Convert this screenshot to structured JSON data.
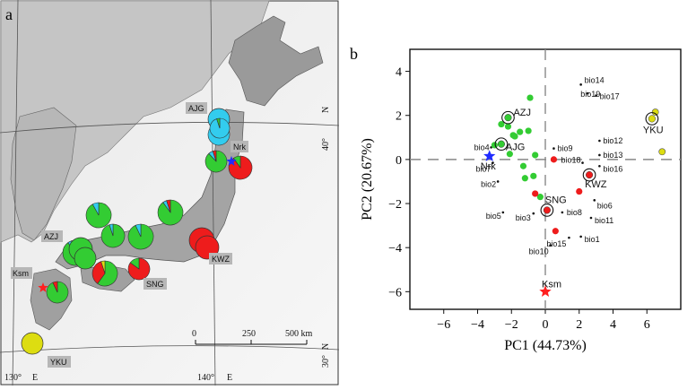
{
  "panels": {
    "map_letter": "a",
    "pca_letter": "b"
  },
  "colors": {
    "green": "#33cc33",
    "red": "#ee1c1c",
    "cyan": "#33ccee",
    "yellow": "#dddd11",
    "blue_star": "#1f2bff",
    "red_star": "#ff2020"
  },
  "map": {
    "grid_labels": {
      "lat40": "40°",
      "lat30": "30°",
      "lon130": "130°",
      "lon140": "140°",
      "north": "N",
      "east": "E"
    },
    "scale": {
      "zero": "0",
      "mid": "250",
      "end": "500 km"
    },
    "site_labels": {
      "AJG": "AJG",
      "Nrk": "Nrk",
      "AZJ": "AZJ",
      "KWZ": "KWZ",
      "Ksm": "Ksm",
      "SNG": "SNG",
      "YKU": "YKU"
    },
    "pies": [
      {
        "site": "AJG-1",
        "slices": [
          {
            "color": "cyan",
            "fraction": 1.0
          }
        ]
      },
      {
        "site": "AJG-2",
        "slices": [
          {
            "color": "cyan",
            "fraction": 0.92
          },
          {
            "color": "green",
            "fraction": 0.08
          }
        ]
      },
      {
        "site": "AJG-3",
        "slices": [
          {
            "color": "cyan",
            "fraction": 0.95
          },
          {
            "color": "green",
            "fraction": 0.05
          }
        ]
      },
      {
        "site": "Nrk-north",
        "slices": [
          {
            "color": "green",
            "fraction": 0.88
          },
          {
            "color": "cyan",
            "fraction": 0.07
          },
          {
            "color": "red",
            "fraction": 0.05
          }
        ]
      },
      {
        "site": "Nrk",
        "slices": [
          {
            "color": "red",
            "fraction": 0.9
          },
          {
            "color": "green",
            "fraction": 0.1
          }
        ]
      },
      {
        "site": "KWZ-1",
        "slices": [
          {
            "color": "red",
            "fraction": 1.0
          }
        ]
      },
      {
        "site": "KWZ-2",
        "slices": [
          {
            "color": "red",
            "fraction": 1.0
          }
        ]
      },
      {
        "site": "central-1",
        "slices": [
          {
            "color": "green",
            "fraction": 0.92
          },
          {
            "color": "cyan",
            "fraction": 0.08
          }
        ]
      },
      {
        "site": "central-2",
        "slices": [
          {
            "color": "green",
            "fraction": 0.9
          },
          {
            "color": "cyan",
            "fraction": 0.05
          },
          {
            "color": "red",
            "fraction": 0.05
          }
        ]
      },
      {
        "site": "central-3",
        "slices": [
          {
            "color": "green",
            "fraction": 0.93
          },
          {
            "color": "cyan",
            "fraction": 0.07
          }
        ]
      },
      {
        "site": "west-1",
        "slices": [
          {
            "color": "green",
            "fraction": 0.95
          },
          {
            "color": "cyan",
            "fraction": 0.05
          }
        ]
      },
      {
        "site": "AZJ",
        "slices": [
          {
            "color": "green",
            "fraction": 0.9
          },
          {
            "color": "cyan",
            "fraction": 0.05
          },
          {
            "color": "red",
            "fraction": 0.05
          }
        ]
      },
      {
        "site": "AZJ-2",
        "slices": [
          {
            "color": "green",
            "fraction": 1.0
          }
        ]
      },
      {
        "site": "AZJ-3",
        "slices": [
          {
            "color": "green",
            "fraction": 1.0
          }
        ]
      },
      {
        "site": "shikoku",
        "slices": [
          {
            "color": "green",
            "fraction": 0.6
          },
          {
            "color": "red",
            "fraction": 0.35
          },
          {
            "color": "yellow",
            "fraction": 0.05
          }
        ]
      },
      {
        "site": "SNG",
        "slices": [
          {
            "color": "red",
            "fraction": 0.85
          },
          {
            "color": "green",
            "fraction": 0.15
          }
        ]
      },
      {
        "site": "kyushu",
        "slices": [
          {
            "color": "green",
            "fraction": 0.93
          },
          {
            "color": "red",
            "fraction": 0.07
          }
        ]
      },
      {
        "site": "YKU",
        "slices": [
          {
            "color": "yellow",
            "fraction": 1.0
          }
        ]
      }
    ]
  },
  "chart_data": {
    "type": "scatter",
    "xlabel": "PC1 (44.73%)",
    "ylabel": "PC2 (20.67%)",
    "xlim": [
      -8,
      8
    ],
    "ylim": [
      -6.8,
      5
    ],
    "xticks": [
      -6,
      -4,
      -2,
      0,
      2,
      4,
      6
    ],
    "yticks": [
      -6,
      -4,
      -2,
      0,
      2,
      4
    ],
    "xtick_labels": [
      "−6",
      "−4",
      "−2",
      "0",
      "2",
      "4",
      "6"
    ],
    "ytick_labels": [
      "−6",
      "−4",
      "−2",
      "0",
      "2",
      "4"
    ],
    "bio_vectors": [
      {
        "name": "bio14",
        "x": 2.1,
        "y": 3.4
      },
      {
        "name": "bio19",
        "x": 2.5,
        "y": 3.0
      },
      {
        "name": "bio17",
        "x": 3.0,
        "y": 2.9
      },
      {
        "name": "bio12",
        "x": 3.2,
        "y": 0.85
      },
      {
        "name": "bio13",
        "x": 3.2,
        "y": 0.2
      },
      {
        "name": "bio16",
        "x": 3.2,
        "y": -0.3
      },
      {
        "name": "bio18",
        "x": 2.2,
        "y": -0.15
      },
      {
        "name": "bio9",
        "x": 0.5,
        "y": 0.5
      },
      {
        "name": "bio4",
        "x": -3.2,
        "y": 0.55
      },
      {
        "name": "bio7",
        "x": -3.1,
        "y": -0.15
      },
      {
        "name": "bio2",
        "x": -2.8,
        "y": -1.0
      },
      {
        "name": "bio5",
        "x": -2.5,
        "y": -2.4
      },
      {
        "name": "bio3",
        "x": -0.7,
        "y": -2.45
      },
      {
        "name": "bio8",
        "x": 1.0,
        "y": -2.4
      },
      {
        "name": "bio6",
        "x": 2.9,
        "y": -1.85
      },
      {
        "name": "bio11",
        "x": 2.7,
        "y": -2.65
      },
      {
        "name": "bio1",
        "x": 2.1,
        "y": -3.5
      },
      {
        "name": "bio15",
        "x": 1.4,
        "y": -3.55
      },
      {
        "name": "bio10",
        "x": 0.3,
        "y": -3.9
      }
    ],
    "series": [
      {
        "name": "green",
        "points": [
          {
            "x": -0.9,
            "y": 2.8
          },
          {
            "x": -2.2,
            "y": 1.5
          },
          {
            "x": -1.5,
            "y": 1.25
          },
          {
            "x": -1.0,
            "y": 1.3
          },
          {
            "x": -1.8,
            "y": 1.05
          },
          {
            "x": -2.6,
            "y": 1.6
          },
          {
            "x": -3.0,
            "y": 0.65
          },
          {
            "x": -2.1,
            "y": 0.25
          },
          {
            "x": -0.6,
            "y": 0.2
          },
          {
            "x": -1.3,
            "y": -0.3
          },
          {
            "x": -0.7,
            "y": -0.75
          },
          {
            "x": -1.2,
            "y": -0.85
          },
          {
            "x": -0.3,
            "y": -1.7
          },
          {
            "x": -1.9,
            "y": 1.1
          }
        ]
      },
      {
        "name": "red",
        "points": [
          {
            "x": 0.5,
            "y": 0.0
          },
          {
            "x": -0.6,
            "y": -1.55
          },
          {
            "x": 2.0,
            "y": -1.45
          },
          {
            "x": 0.6,
            "y": -3.25
          }
        ]
      },
      {
        "name": "yellow",
        "points": [
          {
            "x": 6.5,
            "y": 2.15
          },
          {
            "x": 6.9,
            "y": 0.35
          }
        ]
      }
    ],
    "labeled_points": [
      {
        "name": "AZJ",
        "x": -2.2,
        "y": 1.9,
        "color": "green"
      },
      {
        "name": "AJG",
        "x": -2.6,
        "y": 0.7,
        "color": "green"
      },
      {
        "name": "KWZ",
        "x": 2.6,
        "y": -0.7,
        "color": "red"
      },
      {
        "name": "SNG",
        "x": 0.1,
        "y": -2.3,
        "color": "red"
      },
      {
        "name": "YKU",
        "x": 6.3,
        "y": 1.85,
        "color": "yellow"
      }
    ],
    "stars": [
      {
        "name": "Nrk",
        "x": -3.3,
        "y": 0.15,
        "color": "blue_star"
      },
      {
        "name": "Ksm",
        "x": 0.0,
        "y": -6.0,
        "color": "red_star"
      }
    ]
  }
}
